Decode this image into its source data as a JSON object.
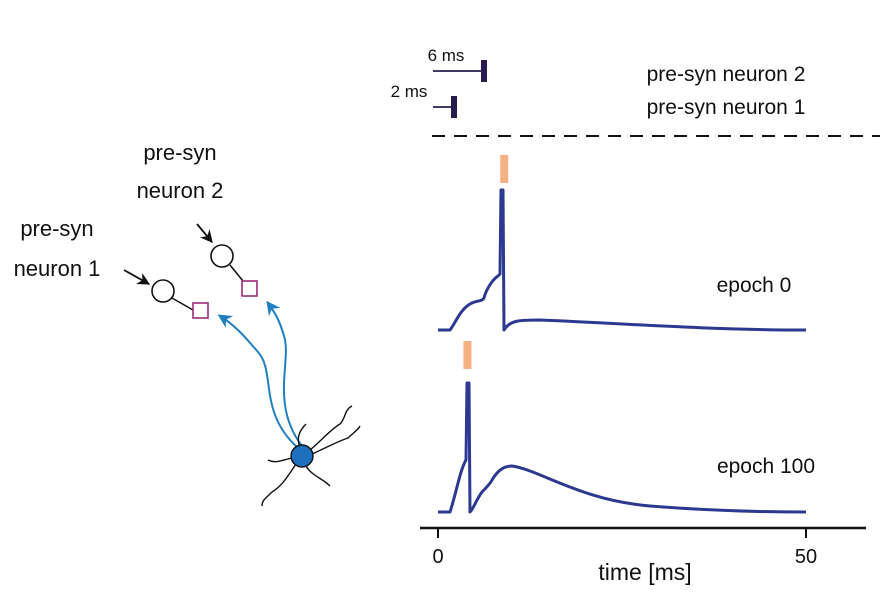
{
  "colors": {
    "trace": "#2b3990",
    "spike_marker": "#f4b183",
    "input_bar": "#2a1b4f",
    "dendrite_arrow": "#1f7fc1",
    "soma": "#1f6fbf",
    "synapse": "#9b2d7a",
    "ink": "#111111"
  },
  "schematic": {
    "neuron1_label_line1": "pre-syn",
    "neuron1_label_line2": "neuron 1",
    "neuron2_label_line1": "pre-syn",
    "neuron2_label_line2": "neuron 2"
  },
  "inputs": {
    "delay2_label": "6 ms",
    "delay1_label": "2 ms",
    "row2_label": "pre-syn neuron 2",
    "row1_label": "pre-syn neuron 1"
  },
  "panels": [
    {
      "epoch_label": "epoch 0",
      "spike_time_ms": 9
    },
    {
      "epoch_label": "epoch 100",
      "spike_time_ms": 4
    }
  ],
  "axis": {
    "xlabel": "time [ms]",
    "tick_labels": [
      "0",
      "50"
    ],
    "xlim": [
      0,
      50
    ]
  }
}
